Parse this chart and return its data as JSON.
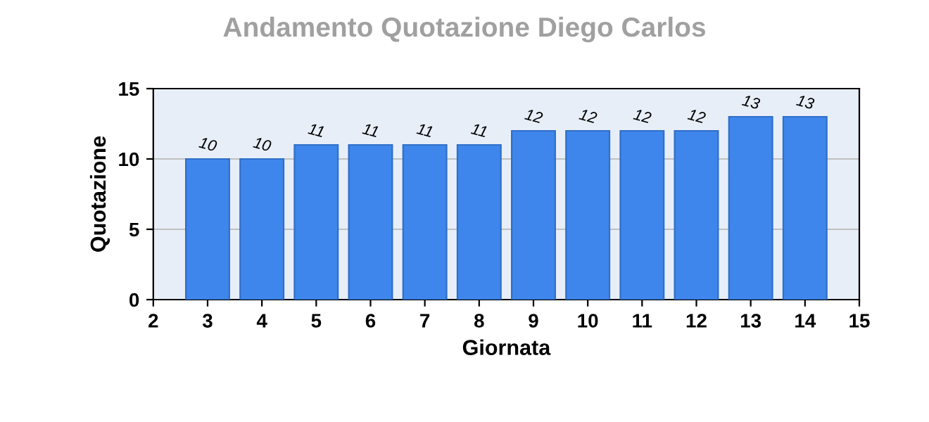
{
  "chart_data": {
    "type": "bar",
    "title": "Andamento Quotazione Diego Carlos",
    "xlabel": "Giornata",
    "ylabel": "Quotazione",
    "x": [
      3,
      4,
      5,
      6,
      7,
      8,
      9,
      10,
      11,
      12,
      13,
      14
    ],
    "values": [
      10,
      10,
      11,
      11,
      11,
      11,
      12,
      12,
      12,
      12,
      13,
      13
    ],
    "color": "#3f86ec",
    "xlim": [
      2,
      15
    ],
    "xticks": [
      2,
      3,
      4,
      5,
      6,
      7,
      8,
      9,
      10,
      11,
      12,
      13,
      14,
      15
    ],
    "ylim": [
      0,
      15
    ],
    "yticks": [
      0,
      5,
      10,
      15
    ],
    "grid": "y",
    "data_labels": true
  }
}
